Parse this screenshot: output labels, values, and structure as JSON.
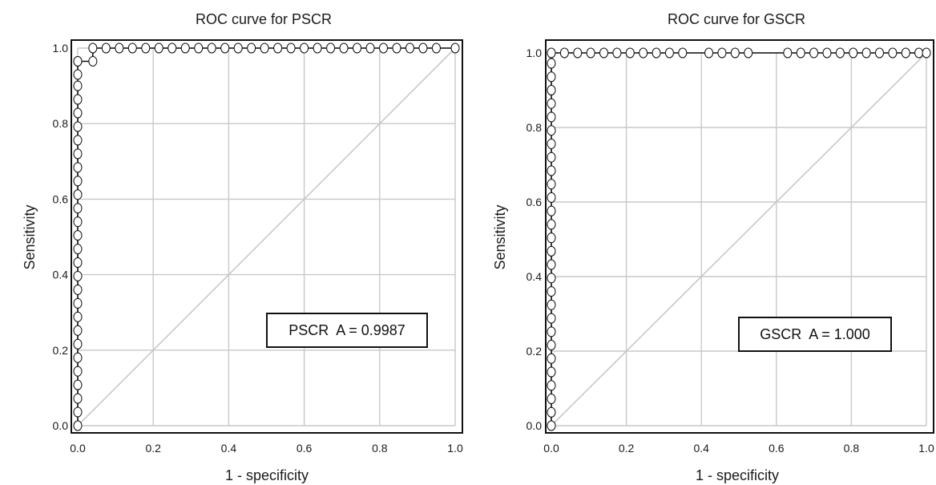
{
  "chart_data": [
    {
      "type": "line",
      "title": "ROC curve for PSCR",
      "xlabel": "1 - specificity",
      "ylabel": "Sensitivity",
      "xlim": [
        0,
        1
      ],
      "ylim": [
        0,
        1
      ],
      "xticks": [
        "0.0",
        "0.2",
        "0.4",
        "0.6",
        "0.8",
        "1.0"
      ],
      "yticks": [
        "0.0",
        "0.2",
        "0.4",
        "0.6",
        "0.8",
        "1.0"
      ],
      "grid": true,
      "diagonal_reference": true,
      "annotation": "PSCR  A = 0.9987",
      "series": [
        {
          "x": [
            0,
            0,
            0,
            0,
            0,
            0,
            0,
            0,
            0,
            0,
            0,
            0,
            0,
            0,
            0,
            0,
            0,
            0,
            0,
            0,
            0,
            0,
            0,
            0,
            0,
            0,
            0,
            0,
            0,
            0.04,
            0.04,
            0.075,
            0.11,
            0.145,
            0.18,
            0.215,
            0.25,
            0.285,
            0.32,
            0.355,
            0.39,
            0.425,
            0.46,
            0.495,
            0.53,
            0.565,
            0.6,
            0.635,
            0.67,
            0.705,
            0.74,
            0.775,
            0.81,
            0.845,
            0.88,
            0.915,
            0.95,
            1.0
          ],
          "y": [
            0,
            0.036,
            0.072,
            0.108,
            0.144,
            0.18,
            0.216,
            0.252,
            0.288,
            0.324,
            0.36,
            0.396,
            0.432,
            0.468,
            0.504,
            0.54,
            0.576,
            0.612,
            0.648,
            0.684,
            0.72,
            0.756,
            0.792,
            0.828,
            0.864,
            0.9,
            0.93,
            0.965,
            0.965,
            0.965,
            1.0,
            1.0,
            1.0,
            1.0,
            1.0,
            1.0,
            1.0,
            1.0,
            1.0,
            1.0,
            1.0,
            1.0,
            1.0,
            1.0,
            1.0,
            1.0,
            1.0,
            1.0,
            1.0,
            1.0,
            1.0,
            1.0,
            1.0,
            1.0,
            1.0,
            1.0,
            1.0,
            1.0
          ]
        }
      ]
    },
    {
      "type": "line",
      "title": "ROC curve for GSCR",
      "xlabel": "1 - specificity",
      "ylabel": "Sensitivity",
      "xlim": [
        0,
        1
      ],
      "ylim": [
        0,
        1
      ],
      "xticks": [
        "0.0",
        "0.2",
        "0.4",
        "0.6",
        "0.8",
        "1.0"
      ],
      "yticks": [
        "0.0",
        "0.2",
        "0.4",
        "0.6",
        "0.8",
        "1.0"
      ],
      "grid": true,
      "diagonal_reference": true,
      "annotation": "GSCR  A = 1.000",
      "series": [
        {
          "x": [
            0,
            0,
            0,
            0,
            0,
            0,
            0,
            0,
            0,
            0,
            0,
            0,
            0,
            0,
            0,
            0,
            0,
            0,
            0,
            0,
            0,
            0,
            0,
            0,
            0,
            0,
            0,
            0,
            0,
            0.035,
            0.07,
            0.105,
            0.14,
            0.175,
            0.21,
            0.245,
            0.28,
            0.315,
            0.35,
            0.42,
            0.455,
            0.49,
            0.525,
            0.63,
            0.665,
            0.7,
            0.735,
            0.77,
            0.805,
            0.84,
            0.875,
            0.91,
            0.945,
            0.98,
            1.0
          ],
          "y": [
            0,
            0.036,
            0.072,
            0.108,
            0.144,
            0.18,
            0.216,
            0.252,
            0.288,
            0.324,
            0.36,
            0.396,
            0.432,
            0.468,
            0.504,
            0.54,
            0.576,
            0.612,
            0.648,
            0.684,
            0.72,
            0.756,
            0.792,
            0.828,
            0.864,
            0.9,
            0.936,
            0.972,
            1.0,
            1.0,
            1.0,
            1.0,
            1.0,
            1.0,
            1.0,
            1.0,
            1.0,
            1.0,
            1.0,
            1.0,
            1.0,
            1.0,
            1.0,
            1.0,
            1.0,
            1.0,
            1.0,
            1.0,
            1.0,
            1.0,
            1.0,
            1.0,
            1.0,
            1.0,
            1.0
          ]
        }
      ]
    }
  ]
}
